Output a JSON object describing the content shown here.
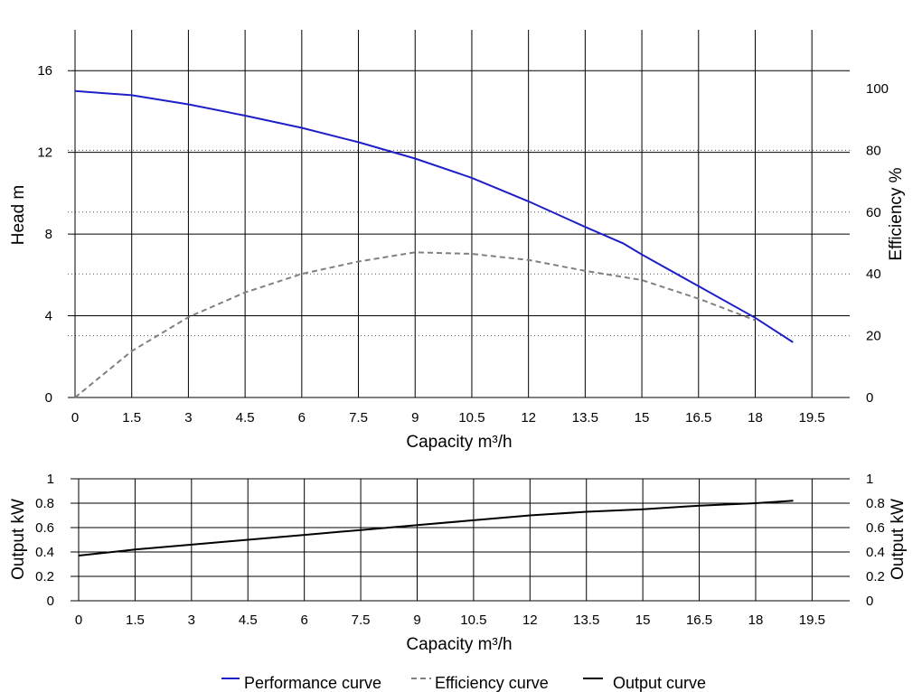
{
  "chart_data": [
    {
      "type": "line",
      "xlabel": "Capacity m³/h",
      "ylabel": "Head m",
      "y2label": "Efficiency %",
      "x_ticks": [
        "0",
        "1.5",
        "3",
        "4.5",
        "6",
        "7.5",
        "9",
        "10.5",
        "12",
        "13.5",
        "15",
        "16.5",
        "18",
        "19.5"
      ],
      "y_ticks": [
        "0",
        "4",
        "8",
        "12",
        "16"
      ],
      "y2_ticks": [
        "0",
        "20",
        "40",
        "60",
        "80",
        "100"
      ],
      "xlim": [
        0,
        20.5
      ],
      "ylim": [
        0,
        18
      ],
      "y2lim": [
        0,
        100
      ],
      "grid": true,
      "series": [
        {
          "name": "Performance curve",
          "axis": "left",
          "color": "#1f1fc8",
          "style": "solid",
          "x": [
            0,
            1.5,
            3,
            4.5,
            6,
            7.5,
            9,
            10.5,
            12,
            13.5,
            14.5,
            15,
            16.5,
            18,
            19
          ],
          "values": [
            15.0,
            14.8,
            14.35,
            13.8,
            13.2,
            12.5,
            11.7,
            10.75,
            9.6,
            8.35,
            7.55,
            7.0,
            5.45,
            3.9,
            2.7
          ]
        },
        {
          "name": "Efficiency curve",
          "axis": "right",
          "color": "#808080",
          "style": "dashed",
          "x": [
            0,
            1.5,
            3,
            4.5,
            6,
            7.5,
            9,
            10.5,
            12,
            13.5,
            15,
            16.5,
            18
          ],
          "values": [
            0,
            15,
            26,
            34,
            40,
            44,
            47,
            46.5,
            44.5,
            41,
            38,
            32,
            25
          ]
        }
      ]
    },
    {
      "type": "line",
      "xlabel": "Capacity m³/h",
      "ylabel": "Output kW",
      "y2label": "Output kW",
      "x_ticks": [
        "0",
        "1.5",
        "3",
        "4.5",
        "6",
        "7.5",
        "9",
        "10.5",
        "12",
        "13.5",
        "15",
        "16.5",
        "18",
        "19.5"
      ],
      "y_ticks": [
        "0",
        "0.2",
        "0.4",
        "0.6",
        "0.8",
        "1"
      ],
      "xlim": [
        0,
        20.5
      ],
      "ylim": [
        0,
        1
      ],
      "grid": true,
      "series": [
        {
          "name": "Output curve",
          "color": "#000000",
          "style": "solid",
          "x": [
            0,
            1.5,
            3,
            4.5,
            6,
            7.5,
            9,
            10.5,
            12,
            13.5,
            15,
            16.5,
            18,
            19
          ],
          "values": [
            0.37,
            0.42,
            0.46,
            0.5,
            0.54,
            0.58,
            0.62,
            0.66,
            0.7,
            0.73,
            0.75,
            0.78,
            0.8,
            0.82
          ]
        }
      ]
    }
  ],
  "legend": {
    "items": [
      {
        "label": "Performance curve",
        "color": "#1f1fc8",
        "style": "solid"
      },
      {
        "label": "Efficiency curve",
        "color": "#808080",
        "style": "dashed"
      },
      {
        "label": "Output curve",
        "color": "#000000",
        "style": "solid"
      }
    ]
  }
}
